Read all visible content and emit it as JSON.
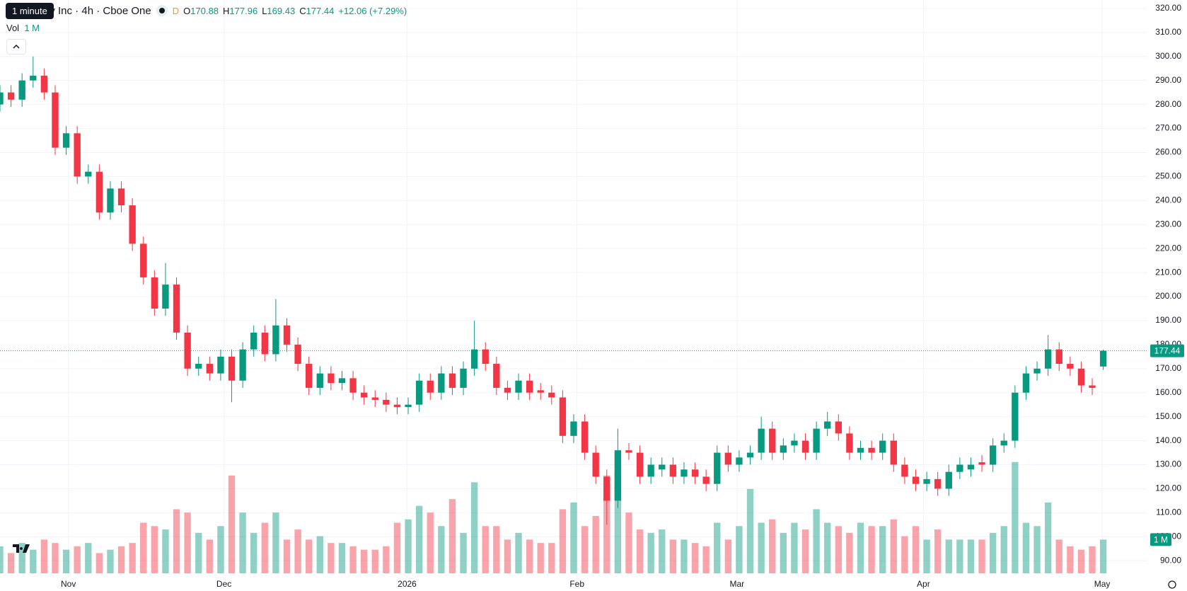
{
  "header": {
    "title": "gy Inc · 4h · Cboe One",
    "badge": "D",
    "ohlc_labels": [
      "O",
      "H",
      "L",
      "C"
    ],
    "change": "+12.06 (+7.29%)",
    "volume_label": "Vol",
    "volume_value": "1 M",
    "tooltip": "1 minute"
  },
  "chart_data": {
    "type": "candlestick",
    "up_color": "#089981",
    "down_color": "#f23645",
    "volume_opacity": 0.45,
    "grid": true,
    "x": [
      0,
      1,
      2,
      3,
      4,
      5,
      6,
      7,
      8,
      9,
      10,
      11,
      12,
      13,
      14,
      15,
      16,
      17,
      18,
      19,
      20,
      21,
      22,
      23,
      24,
      25,
      26,
      27,
      28,
      29,
      30,
      31,
      32,
      33,
      34,
      35,
      36,
      37,
      38,
      39,
      40,
      41,
      42,
      43,
      44,
      45,
      46,
      47,
      48,
      49,
      50,
      51,
      52,
      53,
      54,
      55,
      56,
      57,
      58,
      59,
      60,
      61,
      62,
      63,
      64,
      65,
      66,
      67,
      68,
      69,
      70,
      71,
      72,
      73,
      74,
      75,
      76,
      77,
      78,
      79,
      80,
      81,
      82,
      83,
      84,
      85,
      86,
      87,
      88,
      89,
      90,
      91,
      92,
      93,
      94,
      95,
      96,
      97,
      98,
      99,
      100
    ],
    "open": [
      280,
      285,
      282,
      290,
      292,
      285,
      262,
      268,
      250,
      252,
      235,
      245,
      238,
      222,
      208,
      195,
      205,
      185,
      170,
      172,
      168,
      175,
      165,
      178,
      185,
      176,
      188,
      180,
      172,
      162,
      168,
      164,
      166,
      160,
      158,
      157,
      155,
      154,
      155,
      165,
      160,
      168,
      162,
      170,
      178,
      172,
      162,
      160,
      165,
      161,
      160,
      158,
      142,
      148,
      135,
      125,
      115,
      136,
      135,
      125,
      128,
      130,
      125,
      128,
      125,
      122,
      135,
      130,
      133,
      135,
      145,
      135,
      138,
      140,
      135,
      145,
      148,
      143,
      135,
      137,
      135,
      140,
      130,
      125,
      122,
      124,
      120,
      127,
      128,
      131,
      130,
      138,
      140,
      160,
      168,
      170,
      178,
      172,
      170,
      163,
      170.88
    ],
    "high": [
      288,
      288,
      293,
      300,
      295,
      288,
      271,
      271,
      255,
      255,
      248,
      248,
      241,
      225,
      211,
      214,
      208,
      188,
      175,
      175,
      178,
      178,
      181,
      188,
      188,
      199,
      191,
      183,
      175,
      171,
      171,
      169,
      169,
      163,
      161,
      160,
      158,
      158,
      168,
      168,
      171,
      171,
      173,
      190,
      181,
      175,
      165,
      168,
      168,
      164,
      163,
      161,
      151,
      151,
      138,
      128,
      145,
      139,
      138,
      133,
      133,
      133,
      131,
      131,
      128,
      138,
      138,
      136,
      138,
      150,
      148,
      141,
      143,
      143,
      148,
      152,
      151,
      146,
      140,
      140,
      143,
      143,
      133,
      128,
      127,
      127,
      130,
      133,
      133,
      134,
      141,
      143,
      163,
      171,
      173,
      184,
      181,
      175,
      173,
      166,
      177.96
    ],
    "low": [
      277,
      279,
      279,
      287,
      282,
      259,
      259,
      247,
      247,
      232,
      232,
      235,
      219,
      205,
      192,
      192,
      182,
      167,
      167,
      165,
      165,
      156,
      162,
      175,
      173,
      173,
      177,
      169,
      159,
      159,
      161,
      161,
      157,
      155,
      154,
      152,
      151,
      151,
      152,
      157,
      157,
      159,
      159,
      167,
      169,
      159,
      157,
      157,
      157,
      157,
      155,
      139,
      139,
      132,
      122,
      105,
      112,
      132,
      122,
      122,
      125,
      122,
      122,
      122,
      119,
      119,
      127,
      127,
      130,
      132,
      132,
      132,
      135,
      132,
      132,
      142,
      140,
      132,
      132,
      132,
      132,
      127,
      122,
      119,
      119,
      117,
      117,
      124,
      125,
      127,
      127,
      135,
      137,
      157,
      165,
      167,
      169,
      167,
      160,
      159,
      169.43
    ],
    "close": [
      285,
      282,
      290,
      292,
      285,
      262,
      268,
      250,
      252,
      235,
      245,
      238,
      222,
      208,
      195,
      205,
      185,
      170,
      172,
      168,
      175,
      165,
      178,
      185,
      176,
      188,
      180,
      172,
      162,
      168,
      164,
      166,
      160,
      158,
      157,
      155,
      154,
      155,
      165,
      160,
      168,
      162,
      170,
      178,
      172,
      162,
      160,
      165,
      160,
      160,
      158,
      142,
      148,
      135,
      125,
      115,
      136,
      135,
      125,
      130,
      130,
      125,
      128,
      125,
      122,
      135,
      130,
      133,
      135,
      145,
      135,
      138,
      140,
      135,
      145,
      148,
      143,
      135,
      137,
      135,
      140,
      130,
      125,
      122,
      124,
      120,
      127,
      130,
      130,
      130,
      138,
      140,
      160,
      168,
      170,
      178,
      172,
      170,
      163,
      162,
      177.44
    ],
    "volume": [
      0.8,
      0.6,
      0.9,
      0.7,
      1.0,
      0.9,
      0.7,
      0.8,
      0.9,
      0.6,
      0.7,
      0.8,
      0.9,
      1.5,
      1.4,
      1.3,
      1.9,
      1.8,
      1.2,
      1.0,
      1.4,
      2.9,
      1.8,
      1.2,
      1.5,
      1.8,
      1.0,
      1.3,
      1.0,
      1.1,
      0.9,
      0.9,
      0.8,
      0.7,
      0.7,
      0.8,
      1.5,
      1.6,
      2.0,
      1.8,
      1.4,
      2.2,
      1.2,
      2.7,
      1.4,
      1.4,
      1.0,
      1.2,
      1.0,
      0.9,
      0.9,
      1.9,
      2.1,
      1.4,
      1.7,
      2.9,
      3.0,
      1.8,
      1.3,
      1.2,
      1.3,
      1.0,
      1.0,
      0.9,
      0.8,
      1.5,
      1.0,
      1.4,
      2.5,
      1.5,
      1.6,
      1.2,
      1.5,
      1.3,
      1.9,
      1.5,
      1.4,
      1.2,
      1.5,
      1.4,
      1.4,
      1.6,
      1.1,
      1.4,
      1.0,
      1.3,
      1.0,
      1.0,
      1.0,
      1.0,
      1.2,
      1.4,
      3.3,
      1.5,
      1.4,
      2.1,
      1.0,
      0.8,
      0.7,
      0.8,
      1.0
    ],
    "xlim": [
      0,
      104
    ],
    "xticks": [
      {
        "value": 6.2,
        "label": "Nov"
      },
      {
        "value": 20.3,
        "label": "Dec"
      },
      {
        "value": 36.9,
        "label": "2026"
      },
      {
        "value": 52.3,
        "label": "Feb"
      },
      {
        "value": 66.8,
        "label": "Mar"
      },
      {
        "value": 83.7,
        "label": "Apr"
      },
      {
        "value": 99.9,
        "label": "May"
      }
    ],
    "ylim": [
      83,
      323.5
    ],
    "yticks": [
      {
        "value": 90,
        "label": "90.00"
      },
      {
        "value": 100,
        "label": "100.00"
      },
      {
        "value": 110,
        "label": "110.00"
      },
      {
        "value": 120,
        "label": "120.00"
      },
      {
        "value": 130,
        "label": "130.00"
      },
      {
        "value": 140,
        "label": "140.00"
      },
      {
        "value": 150,
        "label": "150.00"
      },
      {
        "value": 160,
        "label": "160.00"
      },
      {
        "value": 170,
        "label": "170.00"
      },
      {
        "value": 180,
        "label": "180.00"
      },
      {
        "value": 190,
        "label": "190.00"
      },
      {
        "value": 200,
        "label": "200.00"
      },
      {
        "value": 210,
        "label": "210.00"
      },
      {
        "value": 220,
        "label": "220.00"
      },
      {
        "value": 230,
        "label": "230.00"
      },
      {
        "value": 240,
        "label": "240.00"
      },
      {
        "value": 250,
        "label": "250.00"
      },
      {
        "value": 260,
        "label": "260.00"
      },
      {
        "value": 270,
        "label": "270.00"
      },
      {
        "value": 280,
        "label": "280.00"
      },
      {
        "value": 290,
        "label": "290.00"
      },
      {
        "value": 300,
        "label": "300.00"
      },
      {
        "value": 310,
        "label": "310.00"
      },
      {
        "value": 320,
        "label": "320.00"
      }
    ],
    "volume_ylim": [
      0,
      17
    ],
    "volume_ticks": [
      {
        "value": 1,
        "label": "1 M"
      }
    ]
  }
}
